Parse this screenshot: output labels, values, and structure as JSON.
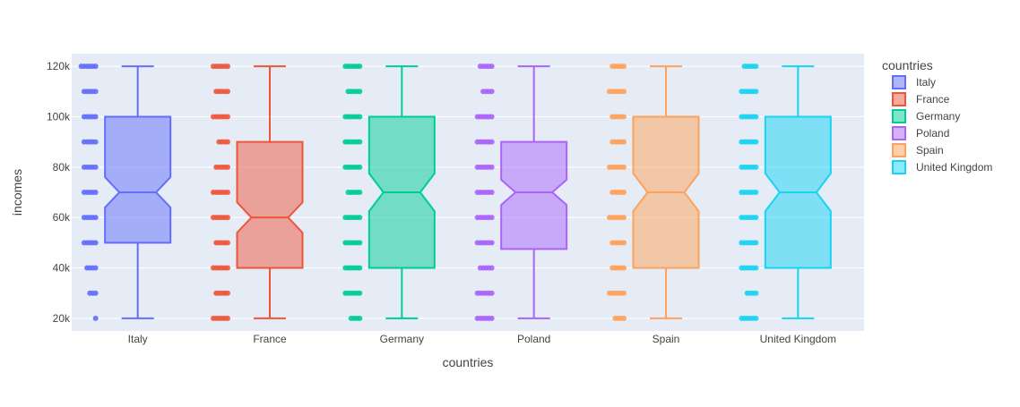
{
  "chart_data": {
    "type": "box",
    "notched": true,
    "points": "all",
    "xlabel": "countries",
    "ylabel": "incomes",
    "ylim": [
      15000,
      125000
    ],
    "yticks": [
      20000,
      40000,
      60000,
      80000,
      100000,
      120000
    ],
    "ytick_labels": [
      "20k",
      "40k",
      "60k",
      "80k",
      "100k",
      "120k"
    ],
    "categories": [
      "Italy",
      "France",
      "Germany",
      "Poland",
      "Spain",
      "United Kingdom"
    ],
    "legend": {
      "title": "countries",
      "position": "right"
    },
    "grid": true,
    "background": "#e5ecf6",
    "series": [
      {
        "name": "Italy",
        "color": "#636efa",
        "min": 20000,
        "q1": 50000,
        "median": 70000,
        "q3": 100000,
        "max": 120000,
        "notch_low": 64000,
        "notch_high": 76000,
        "points": [
          [
            20000,
            1
          ],
          [
            30000,
            3
          ],
          [
            40000,
            4
          ],
          [
            50000,
            5
          ],
          [
            60000,
            5
          ],
          [
            70000,
            5
          ],
          [
            80000,
            5
          ],
          [
            90000,
            5
          ],
          [
            100000,
            5
          ],
          [
            110000,
            5
          ],
          [
            120000,
            6
          ]
        ]
      },
      {
        "name": "France",
        "color": "#ef553b",
        "min": 20000,
        "q1": 40000,
        "median": 60000,
        "q3": 90000,
        "max": 120000,
        "notch_low": 54000,
        "notch_high": 66000,
        "points": [
          [
            20000,
            6
          ],
          [
            30000,
            5
          ],
          [
            40000,
            6
          ],
          [
            50000,
            5
          ],
          [
            60000,
            6
          ],
          [
            70000,
            6
          ],
          [
            80000,
            5
          ],
          [
            90000,
            4
          ],
          [
            100000,
            6
          ],
          [
            110000,
            5
          ],
          [
            120000,
            6
          ]
        ]
      },
      {
        "name": "Germany",
        "color": "#00cc96",
        "min": 20000,
        "q1": 40000,
        "median": 70000,
        "q3": 100000,
        "max": 120000,
        "notch_low": 62500,
        "notch_high": 77500,
        "points": [
          [
            20000,
            4
          ],
          [
            30000,
            6
          ],
          [
            40000,
            6
          ],
          [
            50000,
            6
          ],
          [
            60000,
            6
          ],
          [
            70000,
            5
          ],
          [
            80000,
            6
          ],
          [
            90000,
            6
          ],
          [
            100000,
            6
          ],
          [
            110000,
            5
          ],
          [
            120000,
            6
          ]
        ]
      },
      {
        "name": "Poland",
        "color": "#ab63fa",
        "min": 20000,
        "q1": 47500,
        "median": 70000,
        "q3": 90000,
        "max": 120000,
        "notch_low": 65000,
        "notch_high": 75000,
        "points": [
          [
            20000,
            6
          ],
          [
            30000,
            6
          ],
          [
            40000,
            5
          ],
          [
            50000,
            6
          ],
          [
            60000,
            6
          ],
          [
            70000,
            6
          ],
          [
            80000,
            6
          ],
          [
            90000,
            6
          ],
          [
            100000,
            6
          ],
          [
            110000,
            4
          ],
          [
            120000,
            5
          ]
        ]
      },
      {
        "name": "Spain",
        "color": "#ffa15a",
        "min": 20000,
        "q1": 40000,
        "median": 70000,
        "q3": 100000,
        "max": 120000,
        "notch_low": 62500,
        "notch_high": 77500,
        "points": [
          [
            20000,
            4
          ],
          [
            30000,
            6
          ],
          [
            40000,
            5
          ],
          [
            50000,
            5
          ],
          [
            60000,
            6
          ],
          [
            70000,
            5
          ],
          [
            80000,
            6
          ],
          [
            90000,
            5
          ],
          [
            100000,
            5
          ],
          [
            110000,
            6
          ],
          [
            120000,
            5
          ]
        ]
      },
      {
        "name": "United Kingdom",
        "color": "#19d3f3",
        "min": 20000,
        "q1": 40000,
        "median": 70000,
        "q3": 100000,
        "max": 120000,
        "notch_low": 62500,
        "notch_high": 77500,
        "points": [
          [
            20000,
            6
          ],
          [
            30000,
            4
          ],
          [
            40000,
            6
          ],
          [
            50000,
            6
          ],
          [
            60000,
            6
          ],
          [
            70000,
            6
          ],
          [
            80000,
            6
          ],
          [
            90000,
            6
          ],
          [
            100000,
            6
          ],
          [
            110000,
            6
          ],
          [
            120000,
            5
          ]
        ]
      }
    ]
  }
}
